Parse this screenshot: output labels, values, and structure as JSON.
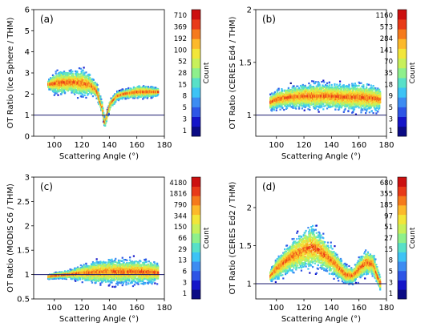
{
  "colorbar_colors": [
    "#0b0b85",
    "#1414c8",
    "#2d55e6",
    "#3d8cf2",
    "#3dc3f5",
    "#58e0c8",
    "#8ef08c",
    "#c8f05a",
    "#f2e639",
    "#fcb92b",
    "#f57a1c",
    "#e83a18",
    "#cc1010"
  ],
  "chart_data": [
    {
      "type": "heatmap",
      "panel_label": "(a)",
      "xlabel": "Scattering Angle (°)",
      "ylabel": "OT Ratio (Ice Sphere / THM)",
      "xlim": [
        85,
        180
      ],
      "ylim": [
        0,
        6
      ],
      "xticks": [
        "100",
        "120",
        "140",
        "160",
        "180"
      ],
      "yticks": [
        "0",
        "1",
        "2",
        "3",
        "4",
        "5",
        "6"
      ],
      "reference_line_y": 1,
      "colorbar_label": "Count",
      "colorbar_ticks": [
        "1",
        "3",
        "5",
        "8",
        "15",
        "28",
        "52",
        "100",
        "192",
        "369",
        "710"
      ],
      "density": {
        "x": [
          95,
          100,
          105,
          110,
          115,
          120,
          125,
          130,
          134,
          136,
          140,
          145,
          150,
          155,
          160,
          165,
          170,
          175
        ],
        "y_center": [
          2.45,
          2.5,
          2.55,
          2.55,
          2.55,
          2.5,
          2.45,
          2.2,
          1.4,
          0.6,
          1.5,
          1.9,
          2.0,
          2.05,
          2.1,
          2.1,
          2.1,
          2.1
        ],
        "y_spread": [
          0.5,
          1.2,
          1.4,
          1.3,
          1.4,
          1.6,
          1.2,
          0.9,
          0.6,
          0.5,
          0.5,
          0.5,
          0.5,
          0.6,
          0.7,
          0.7,
          0.6,
          0.4
        ]
      }
    },
    {
      "type": "heatmap",
      "panel_label": "(b)",
      "xlabel": "Scattering Angle (°)",
      "ylabel": "OT Ratio (CERES Ed4 / THM)",
      "xlim": [
        85,
        180
      ],
      "ylim": [
        0.8,
        2
      ],
      "xticks": [
        "100",
        "120",
        "140",
        "160",
        "180"
      ],
      "yticks": [
        "1",
        "1.5",
        "2"
      ],
      "reference_line_y": 1,
      "colorbar_label": "Count",
      "colorbar_ticks": [
        "1",
        "3",
        "5",
        "9",
        "18",
        "35",
        "70",
        "141",
        "284",
        "573",
        "1160"
      ],
      "density": {
        "x": [
          95,
          100,
          110,
          120,
          130,
          140,
          150,
          160,
          170,
          175
        ],
        "y_center": [
          1.12,
          1.15,
          1.17,
          1.18,
          1.18,
          1.18,
          1.17,
          1.17,
          1.16,
          1.15
        ],
        "y_spread": [
          0.18,
          0.22,
          0.25,
          0.28,
          0.3,
          0.3,
          0.3,
          0.32,
          0.3,
          0.25
        ]
      }
    },
    {
      "type": "heatmap",
      "panel_label": "(c)",
      "xlabel": "Scattering Angle (°)",
      "ylabel": "OT Ratio (MODIS C6 / THM)",
      "xlim": [
        85,
        180
      ],
      "ylim": [
        0.5,
        3
      ],
      "xticks": [
        "100",
        "120",
        "140",
        "160",
        "180"
      ],
      "yticks": [
        "0.5",
        "1",
        "1.5",
        "2",
        "2.5",
        "3"
      ],
      "reference_line_y": 1,
      "colorbar_label": "Count",
      "colorbar_ticks": [
        "1",
        "3",
        "6",
        "13",
        "29",
        "66",
        "150",
        "344",
        "790",
        "1816",
        "4180"
      ],
      "density": {
        "x": [
          95,
          100,
          110,
          120,
          130,
          140,
          150,
          160,
          170,
          175
        ],
        "y_center": [
          0.95,
          0.98,
          1.0,
          1.03,
          1.05,
          1.06,
          1.06,
          1.06,
          1.05,
          1.04
        ],
        "y_spread": [
          0.1,
          0.15,
          0.2,
          0.4,
          0.55,
          0.6,
          0.6,
          0.6,
          0.55,
          0.45
        ]
      }
    },
    {
      "type": "heatmap",
      "panel_label": "(d)",
      "xlabel": "Scattering Angle (°)",
      "ylabel": "OT Ratio (CERES Ed2 / THM)",
      "xlim": [
        85,
        180
      ],
      "ylim": [
        0.8,
        2.4
      ],
      "xticks": [
        "100",
        "120",
        "140",
        "160",
        "180"
      ],
      "yticks": [
        "1",
        "1.5",
        "2"
      ],
      "reference_line_y": 1,
      "colorbar_label": "Count",
      "colorbar_ticks": [
        "1",
        "3",
        "5",
        "8",
        "15",
        "27",
        "51",
        "97",
        "185",
        "355",
        "680"
      ],
      "density": {
        "x": [
          95,
          100,
          110,
          120,
          125,
          130,
          140,
          150,
          155,
          160,
          165,
          170,
          175
        ],
        "y_center": [
          1.1,
          1.2,
          1.35,
          1.45,
          1.48,
          1.45,
          1.3,
          1.12,
          1.1,
          1.2,
          1.28,
          1.25,
          1.0
        ],
        "y_spread": [
          0.2,
          0.35,
          0.5,
          0.65,
          0.7,
          0.6,
          0.45,
          0.3,
          0.25,
          0.35,
          0.4,
          0.35,
          0.25
        ]
      }
    }
  ]
}
